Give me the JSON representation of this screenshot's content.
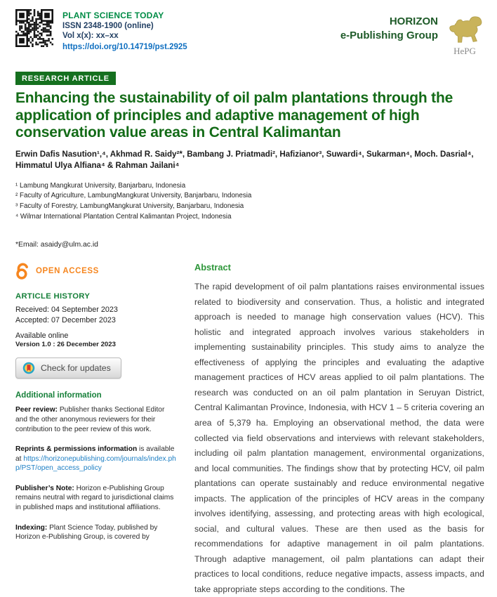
{
  "header": {
    "journal": "PLANT SCIENCE TODAY",
    "issn": "ISSN 2348-1900 (online)",
    "volume": "Vol x(x):  xx–xx",
    "doi": "https://doi.org/10.14719/pst.2925",
    "publisher_line1": "HORIZON",
    "publisher_line2": "e-Publishing Group",
    "logo_caption": "HePG"
  },
  "article": {
    "badge": "RESEARCH ARTICLE",
    "title": "Enhancing the sustainability of oil palm plantations through the application of principles and adaptive management of high conservation value areas in Central Kalimantan",
    "authors": "Erwin Dafis Nasution¹,⁴, Akhmad R. Saidy²*, Bambang J. Priatmadi², Hafizianor³, Suwardi⁴, Sukarman⁴, Moch. Dasrial⁴, Himmatul Ulya Alfiana⁴ & Rahman Jailani⁴",
    "affiliations": [
      "¹ Lambung Mangkurat University, Banjarbaru, Indonesia",
      "² Faculty of Agriculture, LambungMangkurat University, Banjarbaru, Indonesia",
      "³ Faculty of Forestry, LambungMangkurat University, Banjarbaru, Indonesia",
      "⁴ Wilmar International Plantation Central Kalimantan Project, Indonesia"
    ],
    "email": "*Email: asaidy@ulm.ac.id"
  },
  "sidebar": {
    "open_access": "OPEN ACCESS",
    "history_heading": "ARTICLE HISTORY",
    "received": "Received: 04 September 2023",
    "accepted": "Accepted: 07 December 2023",
    "available": "Available online",
    "version": "Version 1.0 : 26 December 2023",
    "check_updates": "Check for updates",
    "additional_heading": "Additional information",
    "peer_review_label": "Peer review:",
    "peer_review_text": " Publisher thanks Sectional Editor and the other anonymous reviewers for their contribution to the peer review of this work.",
    "reprints_label": "Reprints & permissions information",
    "reprints_text": " is available at ",
    "reprints_link": "https://horizonepublishing.com/journals/index.php/PST/open_access_policy",
    "publisher_note_label": "Publisher’s Note:",
    "publisher_note_text": " Horizon e-Publishing Group remains neutral with regard to jurisdictional claims in published maps and institutional affiliations.",
    "indexing_label": "Indexing:",
    "indexing_text": " Plant Science Today, published by Horizon e-Publishing Group, is covered by"
  },
  "abstract": {
    "heading": "Abstract",
    "text": "The rapid development of oil palm plantations raises environmental issues related to biodiversity and conservation. Thus, a holistic and integrated approach is needed to manage high conservation values (HCV). This holistic and integrated approach involves various stakeholders in implementing sustainability principles. This study aims to analyze the effectiveness of applying the principles and evaluating the adaptive management practices of HCV areas applied to oil palm plantations. The research was conducted on an oil palm plantation in Seruyan District, Central Kalimantan Province, Indonesia, with HCV 1 – 5 criteria covering an area of 5,379 ha. Employing an observational method, the data were collected via field observations and interviews with relevant stakeholders, including oil palm plantation management, environmental organizations, and local communities. The findings show that by protecting HCV, oil palm plantations can operate sustainably and reduce environmental negative impacts. The application of the principles of HCV areas in the company involves identifying, assessing, and protecting areas with high ecological, social, and cultural values. These are then used as the basis for recommendations for adaptive management in oil palm plantations. Through adaptive management, oil palm plantations can adapt their practices to local conditions, reduce negative impacts, assess impacts, and take appropriate steps according to the conditions. The"
  },
  "colors": {
    "title_green": "#136b17",
    "badge_green": "#15701f",
    "journal_green": "#008c46",
    "heading_green": "#17803a",
    "abstract_green": "#2d9639",
    "navy": "#223f63",
    "doi_blue": "#0f6fc0",
    "link_blue": "#1d7fc4",
    "open_access_orange": "#f6861f",
    "logo_gold": "#c9b35a"
  }
}
